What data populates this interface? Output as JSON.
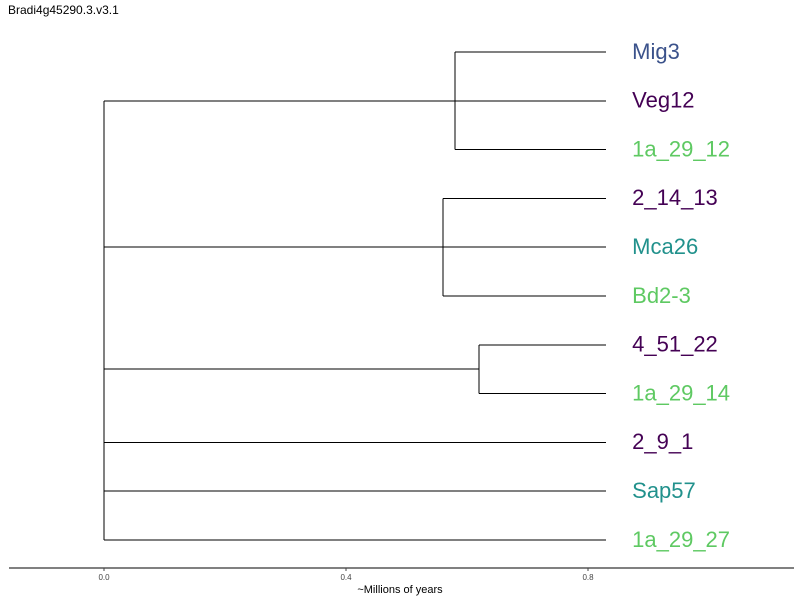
{
  "title": "Bradi4g45290.3.v3.1",
  "tree": {
    "leaves": [
      {
        "name": "Mig3",
        "color": "#3b528b"
      },
      {
        "name": "Veg12",
        "color": "#440154"
      },
      {
        "name": "1a_29_12",
        "color": "#5ec962"
      },
      {
        "name": "2_14_13",
        "color": "#440154"
      },
      {
        "name": "Mca26",
        "color": "#21918c"
      },
      {
        "name": "Bd2-3",
        "color": "#5ec962"
      },
      {
        "name": "4_51_22",
        "color": "#440154"
      },
      {
        "name": "1a_29_14",
        "color": "#5ec962"
      },
      {
        "name": "2_9_1",
        "color": "#440154"
      },
      {
        "name": "Sap57",
        "color": "#21918c"
      },
      {
        "name": "1a_29_27",
        "color": "#5ec962"
      }
    ],
    "root_age": 0.0,
    "leaf_age": 0.83,
    "clades": [
      {
        "leaves": [
          0,
          1,
          2
        ],
        "node_age": 0.58
      },
      {
        "leaves": [
          3,
          4,
          5
        ],
        "node_age": 0.56
      },
      {
        "leaves": [
          6,
          7
        ],
        "node_age": 0.62
      },
      {
        "leaves": [
          8
        ],
        "node_age": null
      },
      {
        "leaves": [
          9
        ],
        "node_age": null
      },
      {
        "leaves": [
          10
        ],
        "node_age": null
      }
    ]
  },
  "axis": {
    "label": "~Millions of years",
    "ticks": [
      {
        "value": 0.0,
        "label": "0.0"
      },
      {
        "value": 0.4,
        "label": "0.4"
      },
      {
        "value": 0.8,
        "label": "0.8"
      }
    ]
  }
}
